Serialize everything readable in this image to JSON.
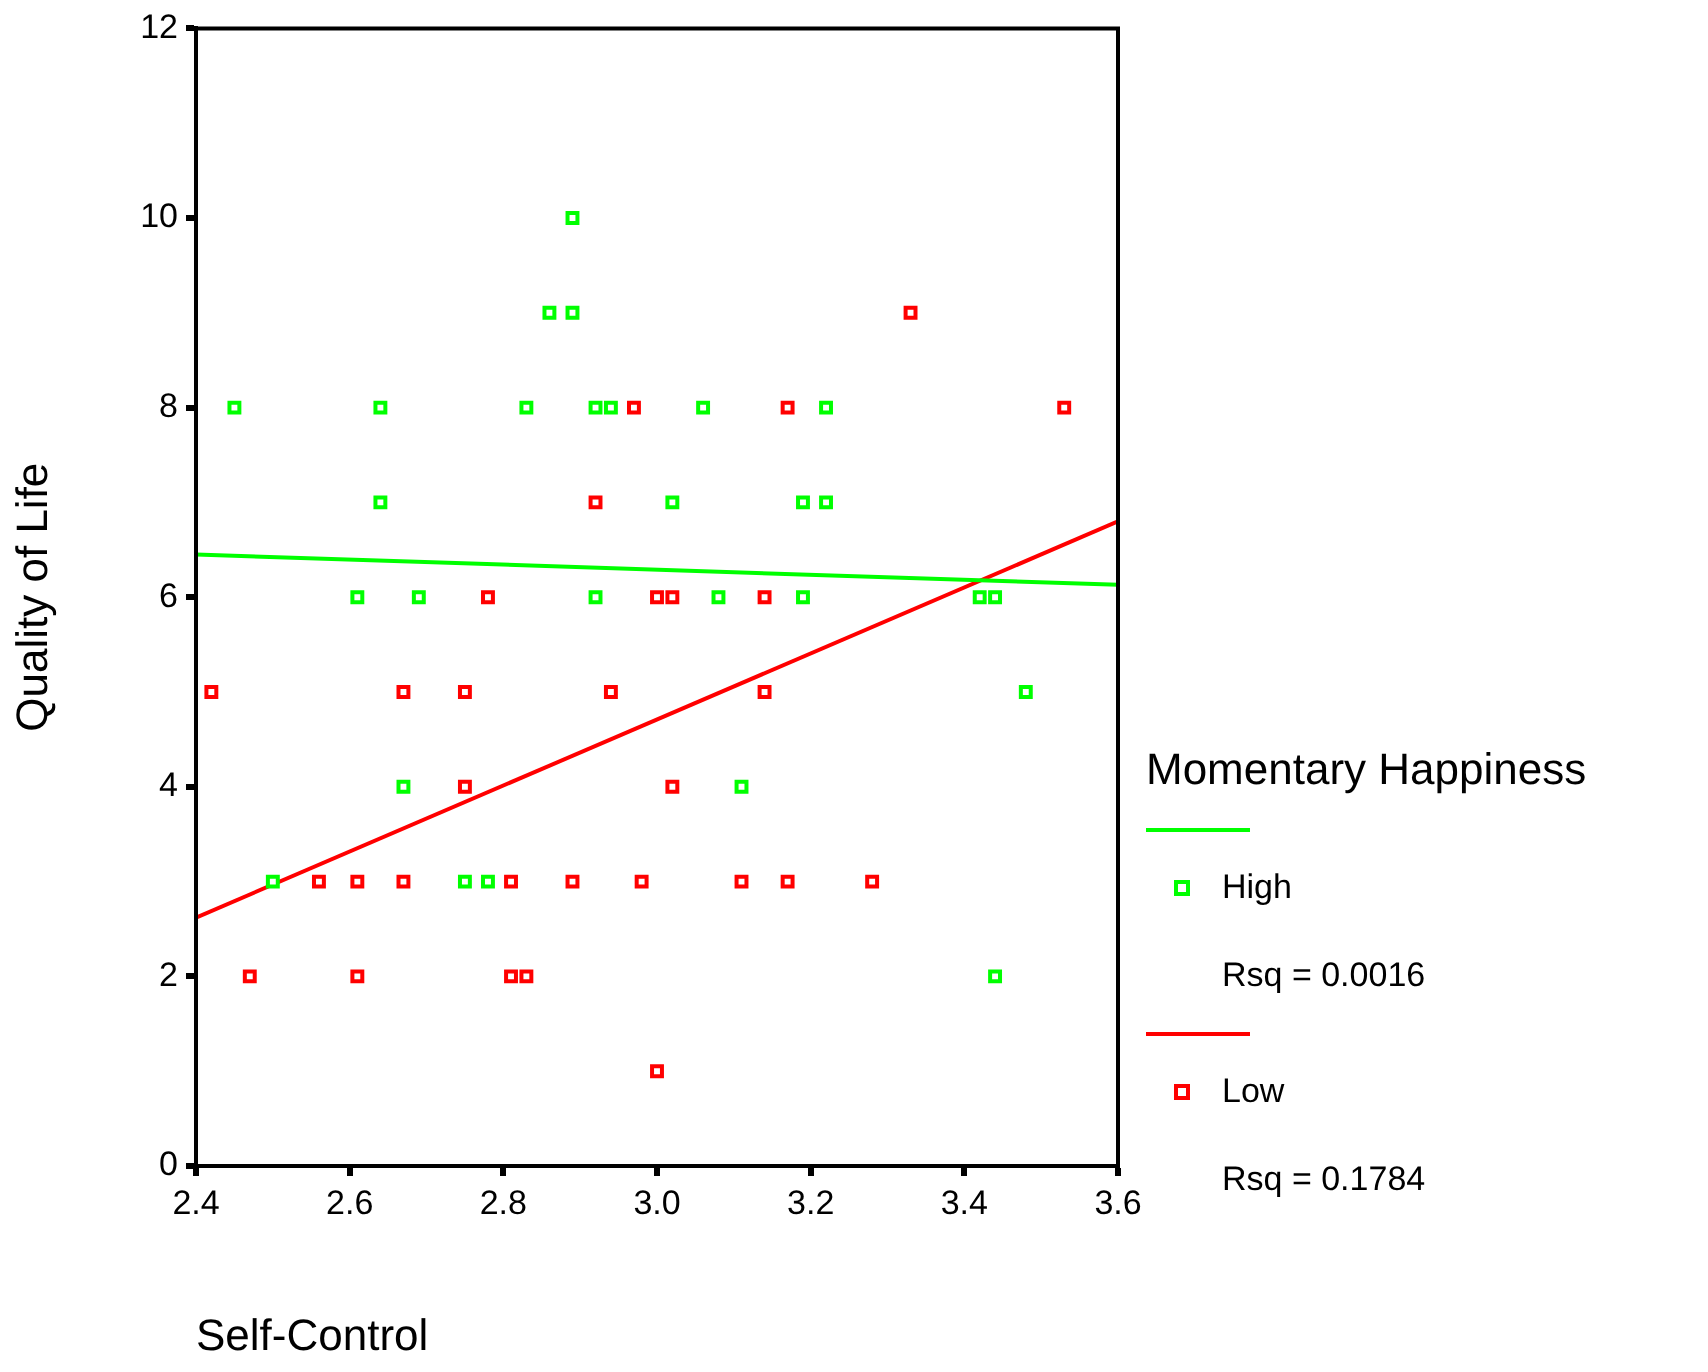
{
  "chart_data": {
    "type": "scatter",
    "xlabel": "Self-Control",
    "ylabel": "Quality of Life",
    "legend_title": "Momentary Happiness",
    "legend": "right",
    "grid": false,
    "marker": "square",
    "xlim": [
      2.4,
      3.6
    ],
    "xticks": [
      2.4,
      2.6,
      2.8,
      {
        "value": 3,
        "label": "3.0"
      },
      3.2,
      3.4,
      3.6
    ],
    "annotations": [
      "Rsq = 0.0016",
      "Rsq = 0.1784"
    ],
    "ylim": [
      0,
      12
    ],
    "yticks": [
      0,
      2,
      4,
      6,
      8,
      10,
      12
    ],
    "series": [
      {
        "type": "line",
        "marker": "none",
        "color": "#00ff00",
        "x": [
          2.4,
          3.6
        ],
        "values": [
          6.45,
          6.13
        ]
      },
      {
        "name": "High",
        "type": "scatter",
        "color": "#00ff00",
        "x": [
          2.45,
          2.64,
          2.64,
          2.89,
          2.86,
          2.89,
          2.83,
          2.92,
          2.94,
          3.06,
          3.22,
          3.02,
          3.19,
          3.22,
          2.61,
          2.69,
          2.92,
          3.08,
          3.19,
          3.42,
          3.44,
          3.48,
          2.67,
          3.11,
          2.5,
          2.75,
          2.78,
          3.44
        ],
        "values": [
          8,
          8,
          7,
          10,
          9,
          9,
          8,
          8,
          8,
          8,
          8,
          7,
          7,
          7,
          6,
          6,
          6,
          6,
          6,
          6,
          6,
          5,
          4,
          4,
          3,
          3,
          3,
          2
        ]
      },
      {
        "type": "line",
        "marker": "none",
        "color": "#ff0000",
        "x": [
          2.4,
          3.6
        ],
        "values": [
          2.62,
          6.8
        ]
      },
      {
        "name": "Low",
        "type": "scatter",
        "color": "#ff0000",
        "x": [
          2.97,
          3.17,
          3.53,
          3.33,
          2.92,
          2.78,
          3.0,
          3.02,
          3.14,
          2.42,
          2.67,
          2.75,
          2.94,
          3.14,
          2.75,
          3.02,
          2.56,
          2.61,
          2.67,
          2.81,
          2.89,
          2.98,
          3.11,
          3.17,
          3.28,
          2.47,
          2.61,
          2.81,
          2.83,
          3.0
        ],
        "values": [
          8,
          8,
          8,
          9,
          7,
          6,
          6,
          6,
          6,
          5,
          5,
          5,
          5,
          5,
          4,
          4,
          3,
          3,
          3,
          3,
          3,
          3,
          3,
          3,
          3,
          2,
          2,
          2,
          2,
          1
        ]
      }
    ]
  }
}
